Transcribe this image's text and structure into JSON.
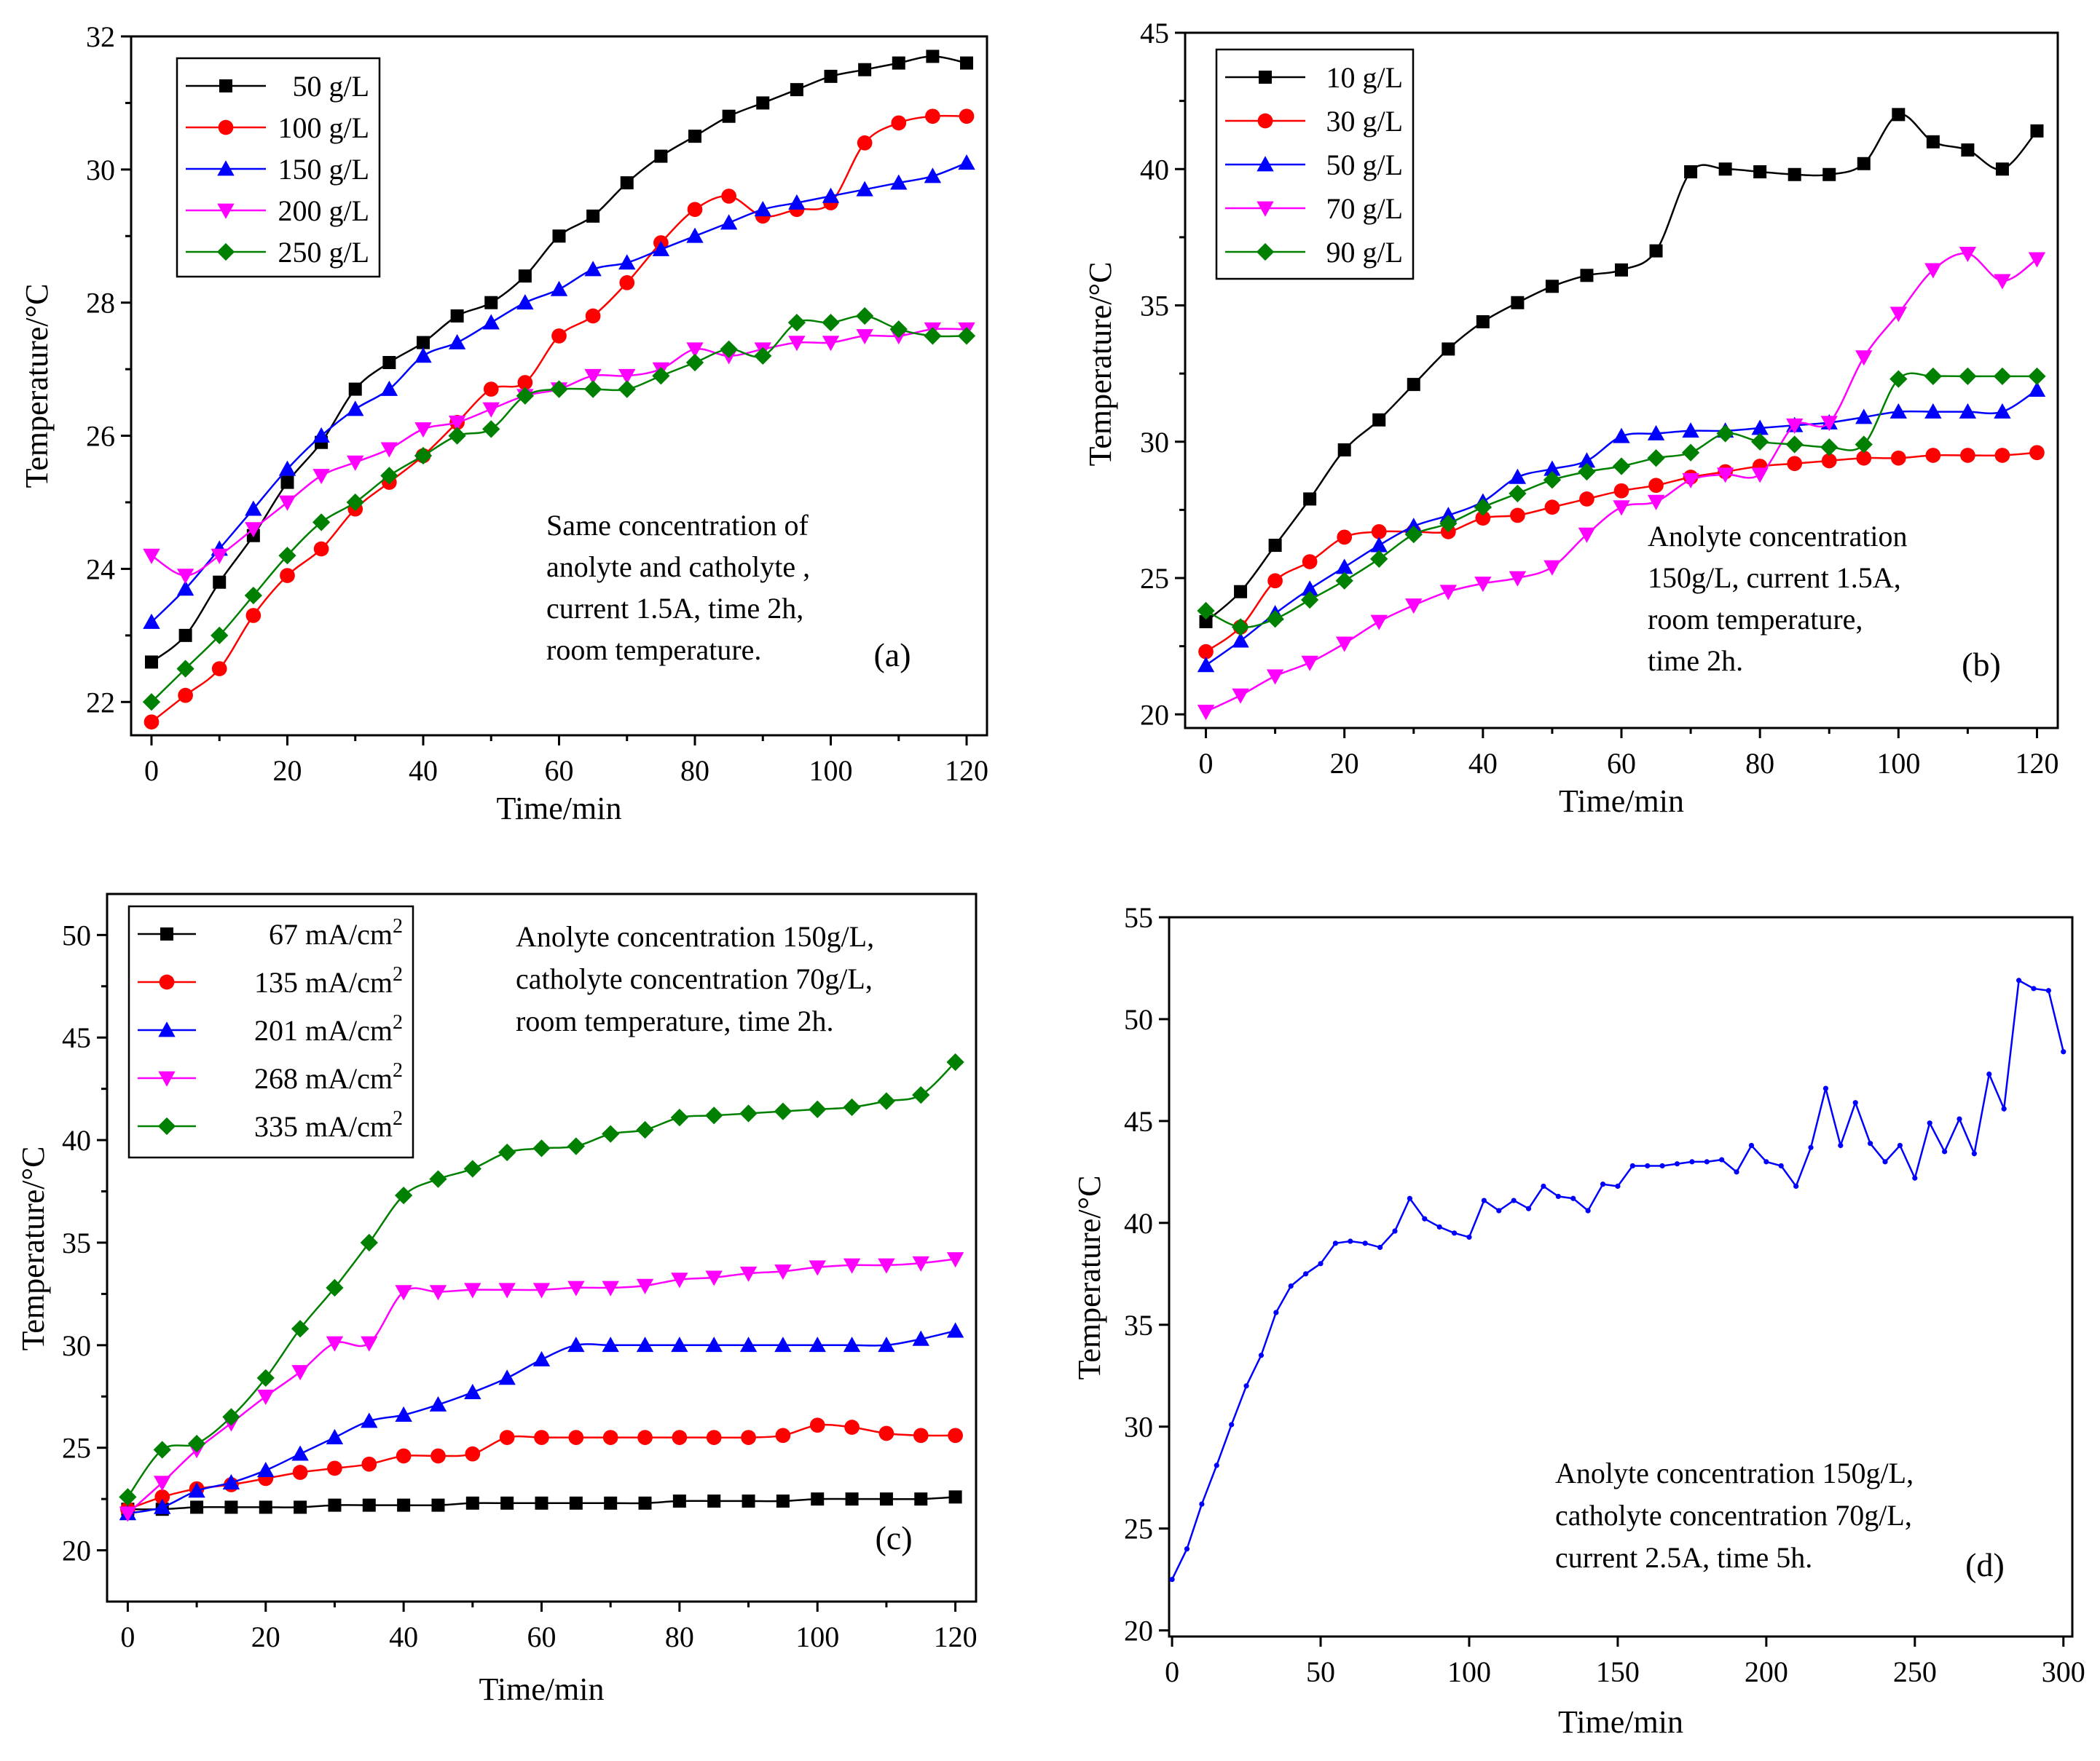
{
  "figure": {
    "panels": [
      "(a)",
      "(b)",
      "(c)",
      "(d)"
    ]
  },
  "chart_data": [
    {
      "type": "line",
      "panel_label": "(a)",
      "xlabel": "Time/min",
      "ylabel": "Temperature/°C",
      "xlim": [
        -3,
        123
      ],
      "ylim": [
        21.5,
        32
      ],
      "xticks": [
        0,
        20,
        40,
        60,
        80,
        100,
        120
      ],
      "yticks": [
        22,
        24,
        26,
        28,
        30,
        32
      ],
      "annotation": [
        "Same concentration of",
        "anolyte and catholyte ,",
        "current 1.5A, time 2h,",
        "room temperature."
      ],
      "legend": {
        "position": "top-left"
      },
      "x": [
        0,
        5,
        10,
        15,
        20,
        25,
        30,
        35,
        40,
        45,
        50,
        55,
        60,
        65,
        70,
        75,
        80,
        85,
        90,
        95,
        100,
        105,
        110,
        115,
        120
      ],
      "series": [
        {
          "name": "50 g/L",
          "color": "#000000",
          "marker": "square",
          "values": [
            22.6,
            23.0,
            23.8,
            24.5,
            25.3,
            25.9,
            26.7,
            27.1,
            27.4,
            27.8,
            28.0,
            28.4,
            29.0,
            29.3,
            29.8,
            30.2,
            30.5,
            30.8,
            31.0,
            31.2,
            31.4,
            31.5,
            31.6,
            31.7,
            31.6
          ]
        },
        {
          "name": "100 g/L",
          "color": "#ff0000",
          "marker": "circle",
          "values": [
            21.7,
            22.1,
            22.5,
            23.3,
            23.9,
            24.3,
            24.9,
            25.3,
            25.7,
            26.2,
            26.7,
            26.8,
            27.5,
            27.8,
            28.3,
            28.9,
            29.4,
            29.6,
            29.3,
            29.4,
            29.5,
            30.4,
            30.7,
            30.8,
            30.8
          ]
        },
        {
          "name": "150 g/L",
          "color": "#0000ff",
          "marker": "triangle-up",
          "values": [
            23.2,
            23.7,
            24.3,
            24.9,
            25.5,
            26.0,
            26.4,
            26.7,
            27.2,
            27.4,
            27.7,
            28.0,
            28.2,
            28.5,
            28.6,
            28.8,
            29.0,
            29.2,
            29.4,
            29.5,
            29.6,
            29.7,
            29.8,
            29.9,
            30.1
          ]
        },
        {
          "name": "200 g/L",
          "color": "#ff00ff",
          "marker": "triangle-down",
          "values": [
            24.2,
            23.9,
            24.2,
            24.6,
            25.0,
            25.4,
            25.6,
            25.8,
            26.1,
            26.2,
            26.4,
            26.6,
            26.7,
            26.9,
            26.9,
            27.0,
            27.3,
            27.2,
            27.3,
            27.4,
            27.4,
            27.5,
            27.5,
            27.6,
            27.6
          ]
        },
        {
          "name": "250 g/L",
          "color": "#008000",
          "marker": "diamond",
          "values": [
            22.0,
            22.5,
            23.0,
            23.6,
            24.2,
            24.7,
            25.0,
            25.4,
            25.7,
            26.0,
            26.1,
            26.6,
            26.7,
            26.7,
            26.7,
            26.9,
            27.1,
            27.3,
            27.2,
            27.7,
            27.7,
            27.8,
            27.6,
            27.5,
            27.5
          ]
        }
      ]
    },
    {
      "type": "line",
      "panel_label": "(b)",
      "xlabel": "Time/min",
      "ylabel": "Temperature/°C",
      "xlim": [
        -3,
        123
      ],
      "ylim": [
        19.5,
        45
      ],
      "xticks": [
        0,
        20,
        40,
        60,
        80,
        100,
        120
      ],
      "yticks": [
        20,
        25,
        30,
        35,
        40,
        45
      ],
      "annotation": [
        "Anolyte concentration",
        "150g/L, current 1.5A,",
        "room temperature,",
        "time 2h."
      ],
      "legend": {
        "position": "top-left"
      },
      "x": [
        0,
        5,
        10,
        15,
        20,
        25,
        30,
        35,
        40,
        45,
        50,
        55,
        60,
        65,
        70,
        75,
        80,
        85,
        90,
        95,
        100,
        105,
        110,
        115,
        120
      ],
      "series": [
        {
          "name": "10 g/L",
          "color": "#000000",
          "marker": "square",
          "values": [
            23.4,
            24.5,
            26.2,
            27.9,
            29.7,
            30.8,
            32.1,
            33.4,
            34.4,
            35.1,
            35.7,
            36.1,
            36.3,
            37.0,
            39.9,
            40.0,
            39.9,
            39.8,
            39.8,
            40.2,
            42.0,
            41.0,
            40.7,
            40.0,
            41.4
          ]
        },
        {
          "name": "30 g/L",
          "color": "#ff0000",
          "marker": "circle",
          "values": [
            22.3,
            23.2,
            24.9,
            25.6,
            26.5,
            26.7,
            26.7,
            26.7,
            27.2,
            27.3,
            27.6,
            27.9,
            28.2,
            28.4,
            28.7,
            28.9,
            29.1,
            29.2,
            29.3,
            29.4,
            29.4,
            29.5,
            29.5,
            29.5,
            29.6
          ]
        },
        {
          "name": "50 g/L",
          "color": "#0000ff",
          "marker": "triangle-up",
          "values": [
            21.8,
            22.7,
            23.7,
            24.6,
            25.4,
            26.2,
            26.9,
            27.3,
            27.8,
            28.7,
            29.0,
            29.3,
            30.2,
            30.3,
            30.4,
            30.4,
            30.5,
            30.6,
            30.7,
            30.9,
            31.1,
            31.1,
            31.1,
            31.1,
            31.9
          ]
        },
        {
          "name": "70 g/L",
          "color": "#ff00ff",
          "marker": "triangle-down",
          "values": [
            20.1,
            20.7,
            21.4,
            21.9,
            22.6,
            23.4,
            24.0,
            24.5,
            24.8,
            25.0,
            25.4,
            26.6,
            27.6,
            27.8,
            28.6,
            28.8,
            28.8,
            30.6,
            30.7,
            33.1,
            34.7,
            36.3,
            36.9,
            35.9,
            36.7
          ]
        },
        {
          "name": "90 g/L",
          "color": "#008000",
          "marker": "diamond",
          "values": [
            23.8,
            23.2,
            23.5,
            24.2,
            24.9,
            25.7,
            26.6,
            27.0,
            27.6,
            28.1,
            28.6,
            28.9,
            29.1,
            29.4,
            29.6,
            30.3,
            30.0,
            29.9,
            29.8,
            29.9,
            32.3,
            32.4,
            32.4,
            32.4,
            32.4
          ]
        }
      ]
    },
    {
      "type": "line",
      "panel_label": "(c)",
      "xlabel": "Time/min",
      "ylabel": "Temperature/°C",
      "xlim": [
        -3,
        123
      ],
      "ylim": [
        17.5,
        52
      ],
      "xticks": [
        0,
        20,
        40,
        60,
        80,
        100,
        120
      ],
      "yticks": [
        20,
        25,
        30,
        35,
        40,
        45,
        50
      ],
      "annotation": [
        "Anolyte concentration 150g/L,",
        "catholyte concentration 70g/L,",
        "room temperature, time 2h."
      ],
      "legend": {
        "position": "top-left"
      },
      "x": [
        0,
        5,
        10,
        15,
        20,
        25,
        30,
        35,
        40,
        45,
        50,
        55,
        60,
        65,
        70,
        75,
        80,
        85,
        90,
        95,
        100,
        105,
        110,
        115,
        120
      ],
      "series": [
        {
          "name": "67 mA/cm",
          "sup": "2",
          "color": "#000000",
          "marker": "square",
          "values": [
            22.0,
            22.0,
            22.1,
            22.1,
            22.1,
            22.1,
            22.2,
            22.2,
            22.2,
            22.2,
            22.3,
            22.3,
            22.3,
            22.3,
            22.3,
            22.3,
            22.4,
            22.4,
            22.4,
            22.4,
            22.5,
            22.5,
            22.5,
            22.5,
            22.6
          ]
        },
        {
          "name": "135 mA/cm",
          "sup": "2",
          "color": "#ff0000",
          "marker": "circle",
          "values": [
            22.0,
            22.6,
            23.0,
            23.2,
            23.5,
            23.8,
            24.0,
            24.2,
            24.6,
            24.6,
            24.7,
            25.5,
            25.5,
            25.5,
            25.5,
            25.5,
            25.5,
            25.5,
            25.5,
            25.6,
            26.1,
            26.0,
            25.7,
            25.6,
            25.6
          ]
        },
        {
          "name": "201 mA/cm",
          "sup": "2",
          "color": "#0000ff",
          "marker": "triangle-up",
          "values": [
            21.8,
            22.1,
            22.9,
            23.3,
            23.9,
            24.7,
            25.5,
            26.3,
            26.6,
            27.1,
            27.7,
            28.4,
            29.3,
            30.0,
            30.0,
            30.0,
            30.0,
            30.0,
            30.0,
            30.0,
            30.0,
            30.0,
            30.0,
            30.3,
            30.7
          ]
        },
        {
          "name": "268 mA/cm",
          "sup": "2",
          "color": "#ff00ff",
          "marker": "triangle-down",
          "values": [
            21.8,
            23.3,
            24.9,
            26.2,
            27.5,
            28.7,
            30.1,
            30.1,
            32.6,
            32.6,
            32.7,
            32.7,
            32.7,
            32.8,
            32.8,
            32.9,
            33.2,
            33.3,
            33.5,
            33.6,
            33.8,
            33.9,
            33.9,
            34.0,
            34.2
          ]
        },
        {
          "name": "335 mA/cm",
          "sup": "2",
          "color": "#008000",
          "marker": "diamond",
          "values": [
            22.6,
            24.9,
            25.2,
            26.5,
            28.4,
            30.8,
            32.8,
            35.0,
            37.3,
            38.1,
            38.6,
            39.4,
            39.6,
            39.7,
            40.3,
            40.5,
            41.1,
            41.2,
            41.3,
            41.4,
            41.5,
            41.6,
            41.9,
            42.2,
            43.8
          ]
        }
      ]
    },
    {
      "type": "line",
      "panel_label": "(d)",
      "xlabel": "Time/min",
      "ylabel": "Temperature/°C",
      "xlim": [
        -1,
        303
      ],
      "ylim": [
        19.7,
        55
      ],
      "xticks": [
        0,
        50,
        100,
        150,
        200,
        250,
        300
      ],
      "yticks": [
        20,
        25,
        30,
        35,
        40,
        45,
        50,
        55
      ],
      "annotation": [
        "Anolyte concentration 150g/L,",
        "catholyte concentration 70g/L,",
        "current 2.5A, time 5h."
      ],
      "x": [
        0,
        5,
        10,
        15,
        20,
        25,
        30,
        35,
        40,
        45,
        50,
        55,
        60,
        65,
        70,
        75,
        80,
        85,
        90,
        95,
        100,
        105,
        110,
        115,
        120,
        125,
        130,
        135,
        140,
        145,
        150,
        155,
        160,
        165,
        170,
        175,
        180,
        185,
        190,
        195,
        200,
        205,
        210,
        215,
        220,
        225,
        230,
        235,
        240,
        245,
        250,
        255,
        260,
        265,
        270,
        275,
        280,
        285,
        290,
        295,
        300
      ],
      "series": [
        {
          "name": "Temperature",
          "color": "#0000ff",
          "marker": "dot",
          "values": [
            22.5,
            24.0,
            26.2,
            28.1,
            30.1,
            32.0,
            33.5,
            35.6,
            36.9,
            37.5,
            38.0,
            39.0,
            39.1,
            39.0,
            38.8,
            39.6,
            41.2,
            40.2,
            39.8,
            39.5,
            39.3,
            41.1,
            40.6,
            41.1,
            40.7,
            41.8,
            41.3,
            41.2,
            40.6,
            41.9,
            41.8,
            42.8,
            42.8,
            42.8,
            42.9,
            43.0,
            43.0,
            43.1,
            42.5,
            43.8,
            43.0,
            42.8,
            41.8,
            43.7,
            46.6,
            43.8,
            45.9,
            43.9,
            43.0,
            43.8,
            42.2,
            44.9,
            43.5,
            45.1,
            43.4,
            47.3,
            45.6,
            51.9,
            51.5,
            51.4,
            48.4
          ]
        }
      ]
    }
  ]
}
